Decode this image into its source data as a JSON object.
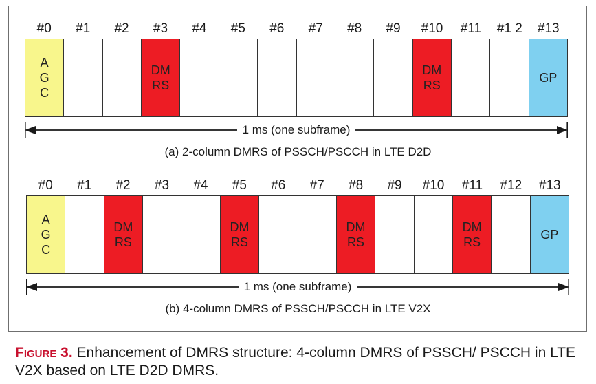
{
  "colors": {
    "agc": "#f8f68c",
    "dmrs": "#ed1c24",
    "gp": "#7fd0f0",
    "empty": "#ffffff"
  },
  "panel_a": {
    "slot_labels": [
      "#0",
      "#1",
      "#2",
      "#3",
      "#4",
      "#5",
      "#6",
      "#7",
      "#8",
      "#9",
      "#10",
      "#11",
      "#1 2",
      "#13"
    ],
    "cells": [
      {
        "type": "agc",
        "text": "A\nG\nC"
      },
      {
        "type": "empty",
        "text": ""
      },
      {
        "type": "empty",
        "text": ""
      },
      {
        "type": "dmrs",
        "text": "DM\nRS"
      },
      {
        "type": "empty",
        "text": ""
      },
      {
        "type": "empty",
        "text": ""
      },
      {
        "type": "empty",
        "text": ""
      },
      {
        "type": "empty",
        "text": ""
      },
      {
        "type": "empty",
        "text": ""
      },
      {
        "type": "empty",
        "text": ""
      },
      {
        "type": "dmrs",
        "text": "DM\nRS"
      },
      {
        "type": "empty",
        "text": ""
      },
      {
        "type": "empty",
        "text": ""
      },
      {
        "type": "gp",
        "text": "GP"
      }
    ],
    "span_label": "1 ms (one subframe)",
    "caption": "(a) 2-column DMRS of PSSCH/PSCCH in LTE D2D"
  },
  "panel_b": {
    "slot_labels": [
      "#0",
      "#1",
      "#2",
      "#3",
      "#4",
      "#5",
      "#6",
      "#7",
      "#8",
      "#9",
      "#10",
      "#11",
      "#12",
      "#13"
    ],
    "cells": [
      {
        "type": "agc",
        "text": "A\nG\nC"
      },
      {
        "type": "empty",
        "text": ""
      },
      {
        "type": "dmrs",
        "text": "DM\nRS"
      },
      {
        "type": "empty",
        "text": ""
      },
      {
        "type": "empty",
        "text": ""
      },
      {
        "type": "dmrs",
        "text": "DM\nRS"
      },
      {
        "type": "empty",
        "text": ""
      },
      {
        "type": "empty",
        "text": ""
      },
      {
        "type": "dmrs",
        "text": "DM\nRS"
      },
      {
        "type": "empty",
        "text": ""
      },
      {
        "type": "empty",
        "text": ""
      },
      {
        "type": "dmrs",
        "text": "DM\nRS"
      },
      {
        "type": "empty",
        "text": ""
      },
      {
        "type": "gp",
        "text": "GP"
      }
    ],
    "span_label": "1 ms (one subframe)",
    "caption": "(b) 4-column DMRS of PSSCH/PSCCH in LTE V2X"
  },
  "figure_caption": {
    "label": "Figure 3.",
    "text": "Enhancement of DMRS structure: 4-column DMRS of PSSCH/ PSCCH in LTE V2X based on LTE D2D DMRS."
  }
}
